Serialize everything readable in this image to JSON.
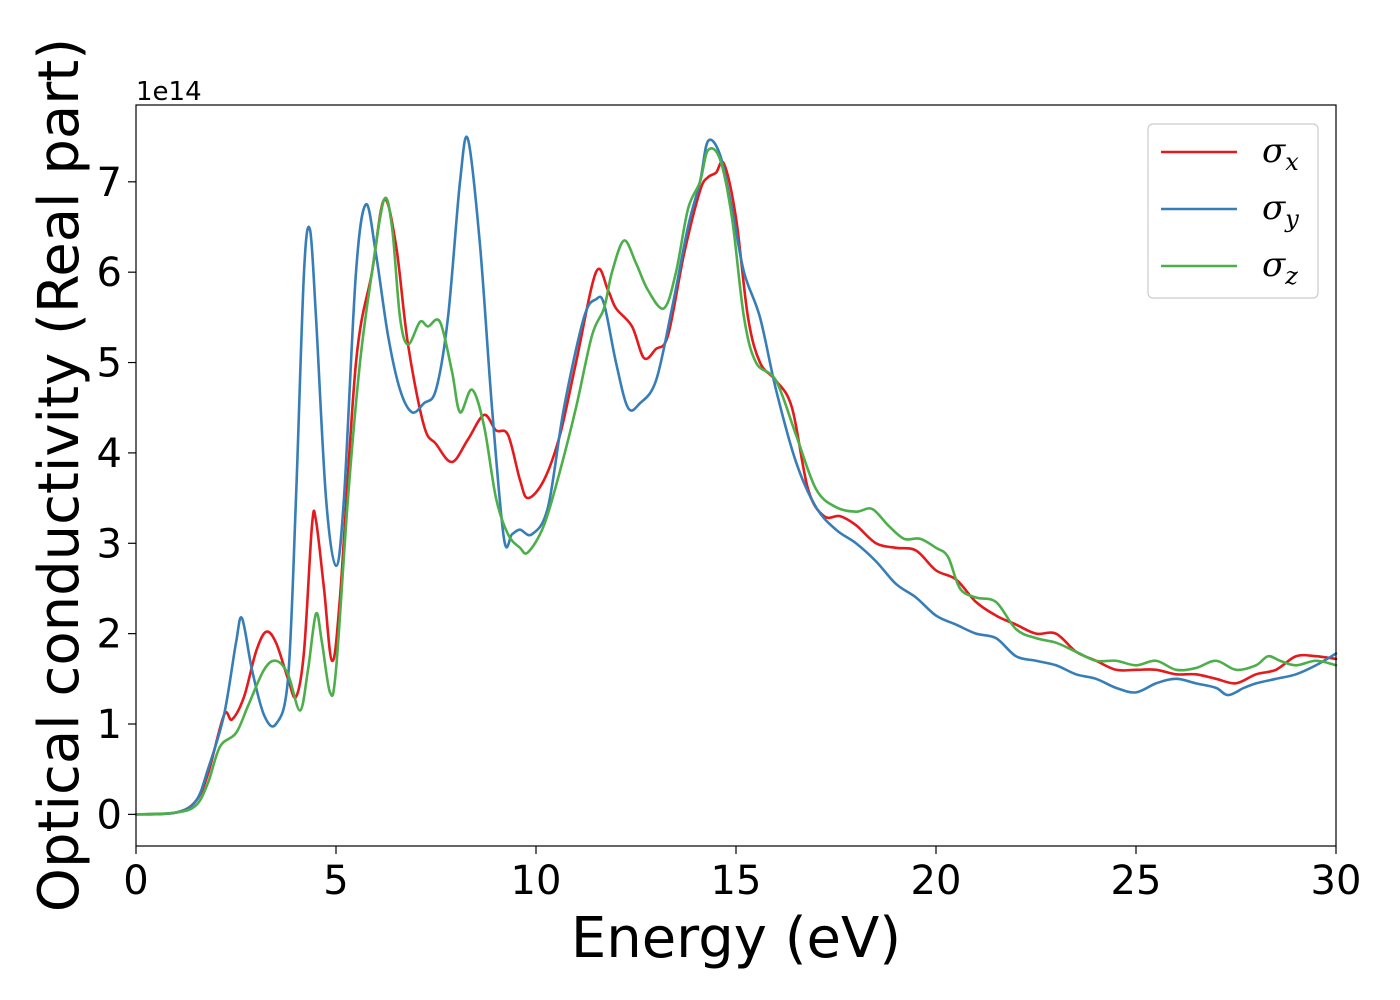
{
  "chart_data": {
    "type": "line",
    "xlabel": "Energy (eV)",
    "ylabel": "Optical conductivity (Real part)",
    "offset_text": "1e14",
    "xlim": [
      0,
      30
    ],
    "ylim": [
      -0.35,
      7.85
    ],
    "y_unit_multiplier": 100000000000000.0,
    "xticks": [
      0,
      5,
      10,
      15,
      20,
      25,
      30
    ],
    "yticks": [
      0,
      1,
      2,
      3,
      4,
      5,
      6,
      7
    ],
    "grid": false,
    "legend_position": "top-right",
    "series": [
      {
        "name": "σx",
        "legend_main": "σ",
        "legend_sub": "x",
        "color": "#e41a1c",
        "points": [
          [
            0,
            0
          ],
          [
            1,
            0.02
          ],
          [
            1.5,
            0.15
          ],
          [
            1.8,
            0.45
          ],
          [
            2.2,
            1.1
          ],
          [
            2.4,
            1.05
          ],
          [
            2.7,
            1.3
          ],
          [
            3.0,
            1.8
          ],
          [
            3.25,
            2.02
          ],
          [
            3.5,
            1.9
          ],
          [
            3.8,
            1.5
          ],
          [
            4.0,
            1.3
          ],
          [
            4.2,
            1.8
          ],
          [
            4.4,
            3.2
          ],
          [
            4.5,
            3.25
          ],
          [
            4.7,
            2.5
          ],
          [
            4.9,
            1.7
          ],
          [
            5.1,
            2.4
          ],
          [
            5.5,
            5.0
          ],
          [
            5.9,
            6.0
          ],
          [
            6.2,
            6.8
          ],
          [
            6.5,
            6.3
          ],
          [
            6.8,
            5.2
          ],
          [
            7.2,
            4.3
          ],
          [
            7.5,
            4.1
          ],
          [
            7.9,
            3.9
          ],
          [
            8.3,
            4.15
          ],
          [
            8.7,
            4.42
          ],
          [
            9.0,
            4.25
          ],
          [
            9.3,
            4.2
          ],
          [
            9.6,
            3.7
          ],
          [
            9.8,
            3.5
          ],
          [
            10.2,
            3.7
          ],
          [
            10.6,
            4.2
          ],
          [
            11.0,
            5.0
          ],
          [
            11.5,
            6.0
          ],
          [
            11.8,
            5.8
          ],
          [
            12.0,
            5.6
          ],
          [
            12.4,
            5.4
          ],
          [
            12.7,
            5.05
          ],
          [
            13.0,
            5.15
          ],
          [
            13.3,
            5.3
          ],
          [
            13.7,
            6.2
          ],
          [
            14.1,
            6.9
          ],
          [
            14.3,
            7.05
          ],
          [
            14.5,
            7.1
          ],
          [
            14.7,
            7.2
          ],
          [
            15.0,
            6.6
          ],
          [
            15.3,
            5.5
          ],
          [
            15.6,
            5.0
          ],
          [
            16.0,
            4.8
          ],
          [
            16.4,
            4.5
          ],
          [
            16.8,
            3.6
          ],
          [
            17.2,
            3.3
          ],
          [
            17.6,
            3.3
          ],
          [
            18.0,
            3.2
          ],
          [
            18.5,
            3.0
          ],
          [
            19.0,
            2.95
          ],
          [
            19.5,
            2.92
          ],
          [
            20.0,
            2.7
          ],
          [
            20.5,
            2.6
          ],
          [
            21.0,
            2.35
          ],
          [
            21.5,
            2.2
          ],
          [
            22.0,
            2.1
          ],
          [
            22.5,
            2.0
          ],
          [
            23.0,
            2.0
          ],
          [
            23.5,
            1.8
          ],
          [
            24.0,
            1.7
          ],
          [
            24.5,
            1.6
          ],
          [
            25.0,
            1.6
          ],
          [
            25.5,
            1.6
          ],
          [
            26.0,
            1.55
          ],
          [
            26.5,
            1.55
          ],
          [
            27.0,
            1.5
          ],
          [
            27.5,
            1.45
          ],
          [
            28.0,
            1.55
          ],
          [
            28.5,
            1.6
          ],
          [
            29.0,
            1.75
          ],
          [
            29.5,
            1.75
          ],
          [
            30.0,
            1.72
          ]
        ]
      },
      {
        "name": "σy",
        "legend_main": "σ",
        "legend_sub": "y",
        "color": "#377eb8",
        "points": [
          [
            0,
            0
          ],
          [
            1,
            0.02
          ],
          [
            1.5,
            0.15
          ],
          [
            1.8,
            0.5
          ],
          [
            2.2,
            1.1
          ],
          [
            2.5,
            1.9
          ],
          [
            2.65,
            2.17
          ],
          [
            2.9,
            1.6
          ],
          [
            3.2,
            1.1
          ],
          [
            3.5,
            1.0
          ],
          [
            3.8,
            1.5
          ],
          [
            4.0,
            3.5
          ],
          [
            4.2,
            6.0
          ],
          [
            4.35,
            6.47
          ],
          [
            4.5,
            5.5
          ],
          [
            4.75,
            3.5
          ],
          [
            5.0,
            2.75
          ],
          [
            5.2,
            3.5
          ],
          [
            5.5,
            6.0
          ],
          [
            5.75,
            6.75
          ],
          [
            6.0,
            6.2
          ],
          [
            6.3,
            5.3
          ],
          [
            6.6,
            4.7
          ],
          [
            6.9,
            4.45
          ],
          [
            7.2,
            4.55
          ],
          [
            7.5,
            4.7
          ],
          [
            7.8,
            5.5
          ],
          [
            8.1,
            7.0
          ],
          [
            8.3,
            7.47
          ],
          [
            8.6,
            6.3
          ],
          [
            8.9,
            4.5
          ],
          [
            9.2,
            3.05
          ],
          [
            9.4,
            3.1
          ],
          [
            9.6,
            3.15
          ],
          [
            9.9,
            3.1
          ],
          [
            10.3,
            3.4
          ],
          [
            10.7,
            4.5
          ],
          [
            11.2,
            5.5
          ],
          [
            11.5,
            5.7
          ],
          [
            11.7,
            5.65
          ],
          [
            12.0,
            5.0
          ],
          [
            12.3,
            4.5
          ],
          [
            12.6,
            4.55
          ],
          [
            13.0,
            4.8
          ],
          [
            13.4,
            5.6
          ],
          [
            13.8,
            6.5
          ],
          [
            14.1,
            7.0
          ],
          [
            14.3,
            7.45
          ],
          [
            14.6,
            7.3
          ],
          [
            14.9,
            6.7
          ],
          [
            15.2,
            6.0
          ],
          [
            15.6,
            5.5
          ],
          [
            16.0,
            4.7
          ],
          [
            16.5,
            3.9
          ],
          [
            17.0,
            3.4
          ],
          [
            17.5,
            3.15
          ],
          [
            18.0,
            3.0
          ],
          [
            18.5,
            2.8
          ],
          [
            19.0,
            2.55
          ],
          [
            19.5,
            2.4
          ],
          [
            20.0,
            2.2
          ],
          [
            20.5,
            2.1
          ],
          [
            21.0,
            2.0
          ],
          [
            21.5,
            1.95
          ],
          [
            22.0,
            1.75
          ],
          [
            22.5,
            1.7
          ],
          [
            23.0,
            1.65
          ],
          [
            23.5,
            1.55
          ],
          [
            24.0,
            1.5
          ],
          [
            24.5,
            1.4
          ],
          [
            25.0,
            1.35
          ],
          [
            25.5,
            1.45
          ],
          [
            26.0,
            1.5
          ],
          [
            26.5,
            1.45
          ],
          [
            27.0,
            1.4
          ],
          [
            27.3,
            1.32
          ],
          [
            27.7,
            1.4
          ],
          [
            28.0,
            1.45
          ],
          [
            28.5,
            1.5
          ],
          [
            29.0,
            1.55
          ],
          [
            29.5,
            1.65
          ],
          [
            30.0,
            1.78
          ]
        ]
      },
      {
        "name": "σz",
        "legend_main": "σ",
        "legend_sub": "z",
        "color": "#4daf4a",
        "points": [
          [
            0,
            0
          ],
          [
            1,
            0.02
          ],
          [
            1.5,
            0.1
          ],
          [
            1.8,
            0.35
          ],
          [
            2.1,
            0.75
          ],
          [
            2.5,
            0.9
          ],
          [
            2.8,
            1.2
          ],
          [
            3.2,
            1.6
          ],
          [
            3.5,
            1.7
          ],
          [
            3.8,
            1.55
          ],
          [
            4.1,
            1.15
          ],
          [
            4.3,
            1.6
          ],
          [
            4.5,
            2.22
          ],
          [
            4.65,
            1.9
          ],
          [
            4.85,
            1.35
          ],
          [
            5.0,
            1.6
          ],
          [
            5.3,
            3.5
          ],
          [
            5.6,
            5.0
          ],
          [
            5.9,
            6.0
          ],
          [
            6.2,
            6.8
          ],
          [
            6.4,
            6.5
          ],
          [
            6.6,
            5.5
          ],
          [
            6.8,
            5.2
          ],
          [
            7.1,
            5.45
          ],
          [
            7.3,
            5.4
          ],
          [
            7.6,
            5.45
          ],
          [
            7.9,
            4.9
          ],
          [
            8.1,
            4.45
          ],
          [
            8.4,
            4.7
          ],
          [
            8.7,
            4.3
          ],
          [
            9.0,
            3.5
          ],
          [
            9.3,
            3.1
          ],
          [
            9.6,
            2.95
          ],
          [
            9.8,
            2.9
          ],
          [
            10.2,
            3.2
          ],
          [
            10.6,
            3.8
          ],
          [
            11.0,
            4.5
          ],
          [
            11.4,
            5.3
          ],
          [
            11.7,
            5.6
          ],
          [
            11.9,
            6.0
          ],
          [
            12.2,
            6.35
          ],
          [
            12.5,
            6.1
          ],
          [
            12.8,
            5.8
          ],
          [
            13.2,
            5.6
          ],
          [
            13.5,
            6.0
          ],
          [
            13.8,
            6.7
          ],
          [
            14.1,
            7.0
          ],
          [
            14.3,
            7.35
          ],
          [
            14.6,
            7.25
          ],
          [
            14.9,
            6.6
          ],
          [
            15.2,
            5.5
          ],
          [
            15.5,
            5.0
          ],
          [
            16.0,
            4.8
          ],
          [
            16.5,
            4.2
          ],
          [
            17.0,
            3.6
          ],
          [
            17.5,
            3.4
          ],
          [
            18.0,
            3.35
          ],
          [
            18.4,
            3.38
          ],
          [
            18.8,
            3.2
          ],
          [
            19.2,
            3.05
          ],
          [
            19.6,
            3.05
          ],
          [
            20.0,
            2.95
          ],
          [
            20.3,
            2.85
          ],
          [
            20.6,
            2.5
          ],
          [
            21.0,
            2.4
          ],
          [
            21.5,
            2.35
          ],
          [
            22.0,
            2.05
          ],
          [
            22.5,
            1.95
          ],
          [
            23.0,
            1.9
          ],
          [
            23.5,
            1.8
          ],
          [
            24.0,
            1.7
          ],
          [
            24.5,
            1.7
          ],
          [
            25.0,
            1.65
          ],
          [
            25.5,
            1.7
          ],
          [
            26.0,
            1.6
          ],
          [
            26.5,
            1.62
          ],
          [
            27.0,
            1.7
          ],
          [
            27.5,
            1.6
          ],
          [
            28.0,
            1.65
          ],
          [
            28.3,
            1.75
          ],
          [
            28.6,
            1.7
          ],
          [
            29.0,
            1.65
          ],
          [
            29.5,
            1.7
          ],
          [
            30.0,
            1.65
          ]
        ]
      }
    ]
  }
}
